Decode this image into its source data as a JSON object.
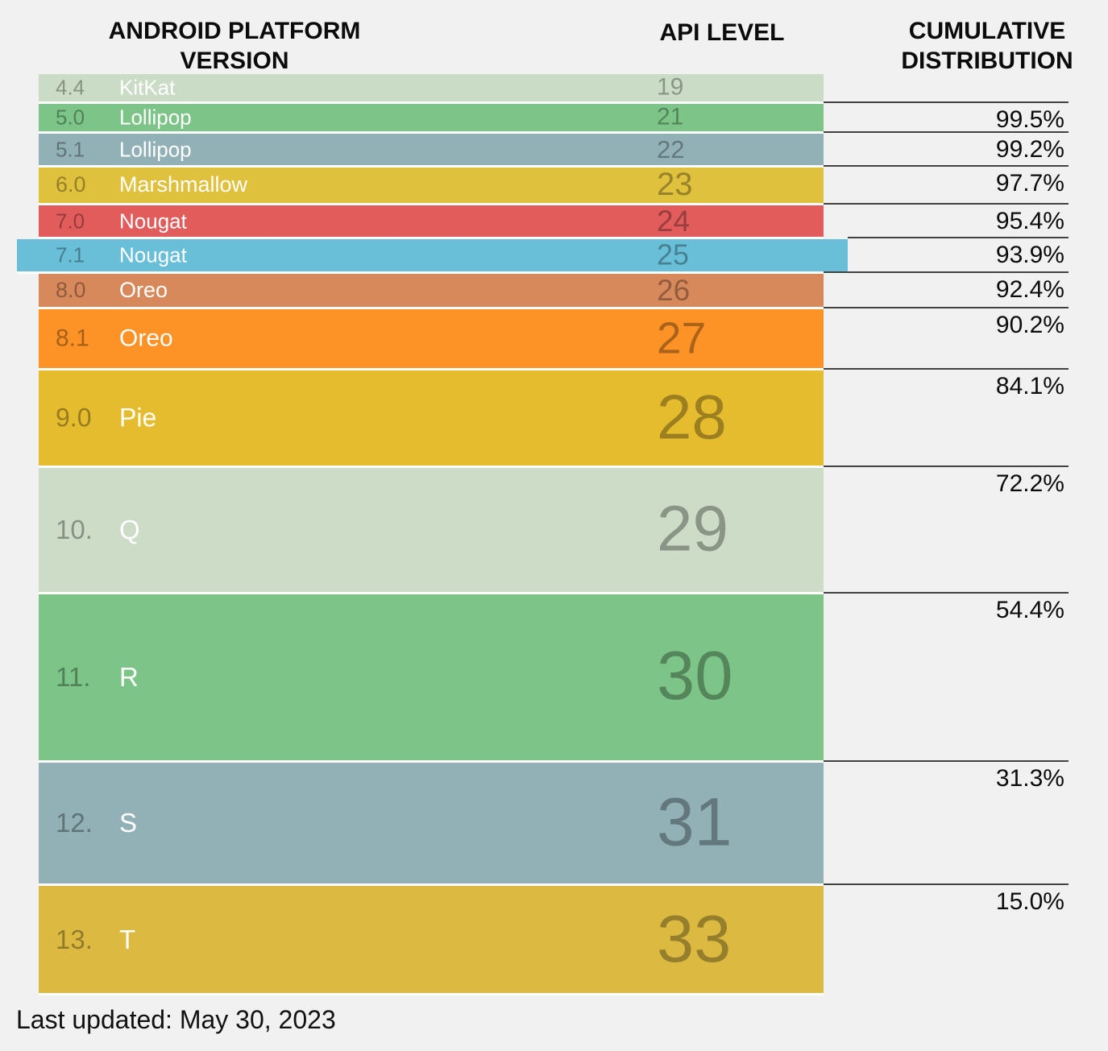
{
  "header": {
    "version_line1": "ANDROID PLATFORM",
    "version_line2": "VERSION",
    "api": "API LEVEL",
    "cumulative_line1": "CUMULATIVE",
    "cumulative_line2": "DISTRIBUTION"
  },
  "rows": [
    {
      "version": "4.4",
      "name": "KitKat",
      "api": "19",
      "cumulative": "",
      "color": "#cbdcc6",
      "highlighted": false
    },
    {
      "version": "5.0",
      "name": "Lollipop",
      "api": "21",
      "cumulative": "99.5%",
      "color": "#7cc487",
      "highlighted": false
    },
    {
      "version": "5.1",
      "name": "Lollipop",
      "api": "22",
      "cumulative": "99.2%",
      "color": "#92b1b7",
      "highlighted": false
    },
    {
      "version": "6.0",
      "name": "Marshmallow",
      "api": "23",
      "cumulative": "97.7%",
      "color": "#dfc13d",
      "highlighted": false
    },
    {
      "version": "7.0",
      "name": "Nougat",
      "api": "24",
      "cumulative": "95.4%",
      "color": "#e25c5c",
      "highlighted": false
    },
    {
      "version": "7.1",
      "name": "Nougat",
      "api": "25",
      "cumulative": "93.9%",
      "color": "#69bfd8",
      "highlighted": true
    },
    {
      "version": "8.0",
      "name": "Oreo",
      "api": "26",
      "cumulative": "92.4%",
      "color": "#d8895c",
      "highlighted": false
    },
    {
      "version": "8.1",
      "name": "Oreo",
      "api": "27",
      "cumulative": "90.2%",
      "color": "#fd9226",
      "highlighted": false
    },
    {
      "version": "9.0",
      "name": "Pie",
      "api": "28",
      "cumulative": "84.1%",
      "color": "#e6bc2f",
      "highlighted": false
    },
    {
      "version": "10.",
      "name": "Q",
      "api": "29",
      "cumulative": "72.2%",
      "color": "#ccdcc7",
      "highlighted": false
    },
    {
      "version": "11.",
      "name": "R",
      "api": "30",
      "cumulative": "54.4%",
      "color": "#7cc487",
      "highlighted": false
    },
    {
      "version": "12.",
      "name": "S",
      "api": "31",
      "cumulative": "31.3%",
      "color": "#92b1b7",
      "highlighted": false
    },
    {
      "version": "13.",
      "name": "T",
      "api": "33",
      "cumulative": "15.0%",
      "color": "#dcba42",
      "highlighted": false
    }
  ],
  "footer": {
    "last_updated": "Last updated: May 30, 2023"
  },
  "colors": {
    "background": "#f1f1f1",
    "separator_line": "#424242",
    "percent_text": "#0c0c0c",
    "version_name_text": "#ffffff",
    "number_overlay_text": "rgba(0,0,0,0.33)",
    "row_gap": "#ffffff",
    "highlight_bar": "#69bfd8"
  },
  "chart_data": {
    "type": "table",
    "title": "Android platform version distribution",
    "columns": [
      "ANDROID PLATFORM VERSION",
      "API LEVEL",
      "CUMULATIVE DISTRIBUTION"
    ],
    "rows": [
      {
        "platform_version": "4.4 KitKat",
        "api_level": 19,
        "cumulative_distribution_pct": null
      },
      {
        "platform_version": "5.0 Lollipop",
        "api_level": 21,
        "cumulative_distribution_pct": 99.5
      },
      {
        "platform_version": "5.1 Lollipop",
        "api_level": 22,
        "cumulative_distribution_pct": 99.2
      },
      {
        "platform_version": "6.0 Marshmallow",
        "api_level": 23,
        "cumulative_distribution_pct": 97.7
      },
      {
        "platform_version": "7.0 Nougat",
        "api_level": 24,
        "cumulative_distribution_pct": 95.4
      },
      {
        "platform_version": "7.1 Nougat",
        "api_level": 25,
        "cumulative_distribution_pct": 93.9
      },
      {
        "platform_version": "8.0 Oreo",
        "api_level": 26,
        "cumulative_distribution_pct": 92.4
      },
      {
        "platform_version": "8.1 Oreo",
        "api_level": 27,
        "cumulative_distribution_pct": 90.2
      },
      {
        "platform_version": "9.0 Pie",
        "api_level": 28,
        "cumulative_distribution_pct": 84.1
      },
      {
        "platform_version": "10. Q",
        "api_level": 29,
        "cumulative_distribution_pct": 72.2
      },
      {
        "platform_version": "11. R",
        "api_level": 30,
        "cumulative_distribution_pct": 54.4
      },
      {
        "platform_version": "12. S",
        "api_level": 31,
        "cumulative_distribution_pct": 31.3
      },
      {
        "platform_version": "13. T",
        "api_level": 33,
        "cumulative_distribution_pct": 15.0
      }
    ],
    "per_version_share_pct": [
      0.5,
      0.3,
      1.5,
      2.3,
      1.5,
      1.5,
      2.2,
      6.1,
      11.9,
      17.8,
      23.1,
      16.3,
      15.0
    ],
    "highlighted_row": "7.1 Nougat (API 25)",
    "layout_hints": {
      "row_heights_proportional_to_share": true,
      "cumulative_percent_shown_at_row_top_line": true,
      "last_row_bottom_line": false
    },
    "note": "Last updated: May 30, 2023"
  }
}
